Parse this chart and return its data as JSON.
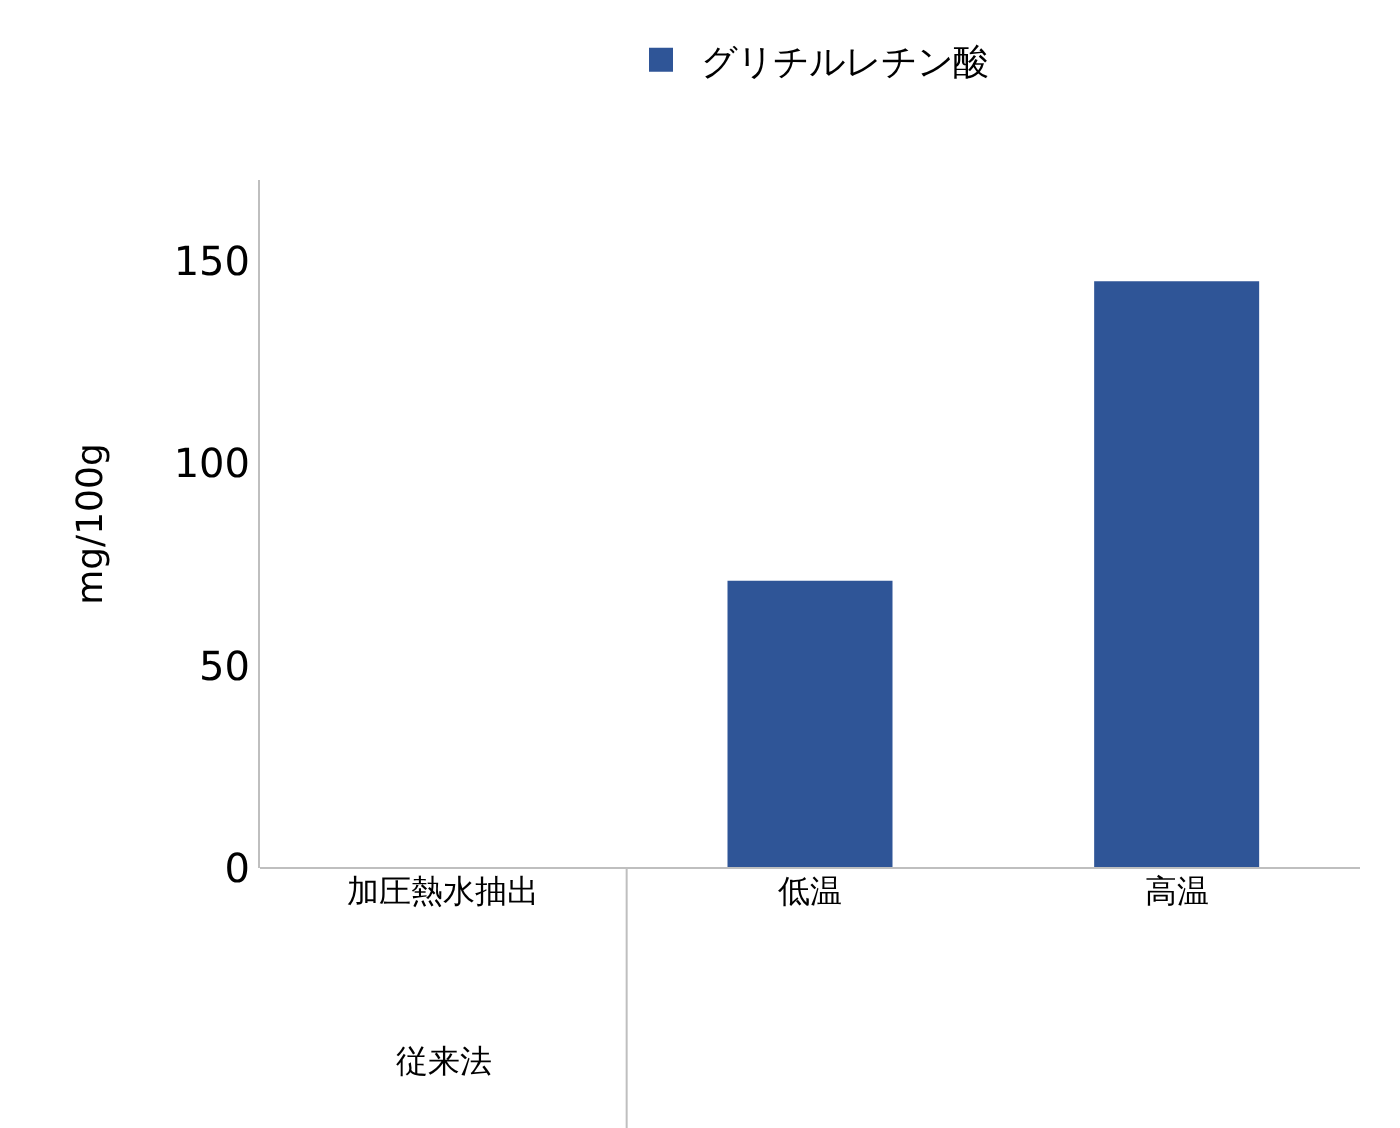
{
  "chart_data": {
    "type": "bar",
    "categories": [
      "加圧熱水抽出",
      "低温",
      "高温"
    ],
    "series": [
      {
        "name": "グリチルレチン酸",
        "color": "#2f5597",
        "values": [
          0,
          71,
          145
        ]
      }
    ],
    "ylabel": "mg/100g",
    "ylim": [
      0,
      170
    ],
    "yticks": [
      0,
      50,
      100,
      150
    ],
    "grid": false,
    "legend": "top",
    "annotations": [
      "従来法"
    ]
  }
}
